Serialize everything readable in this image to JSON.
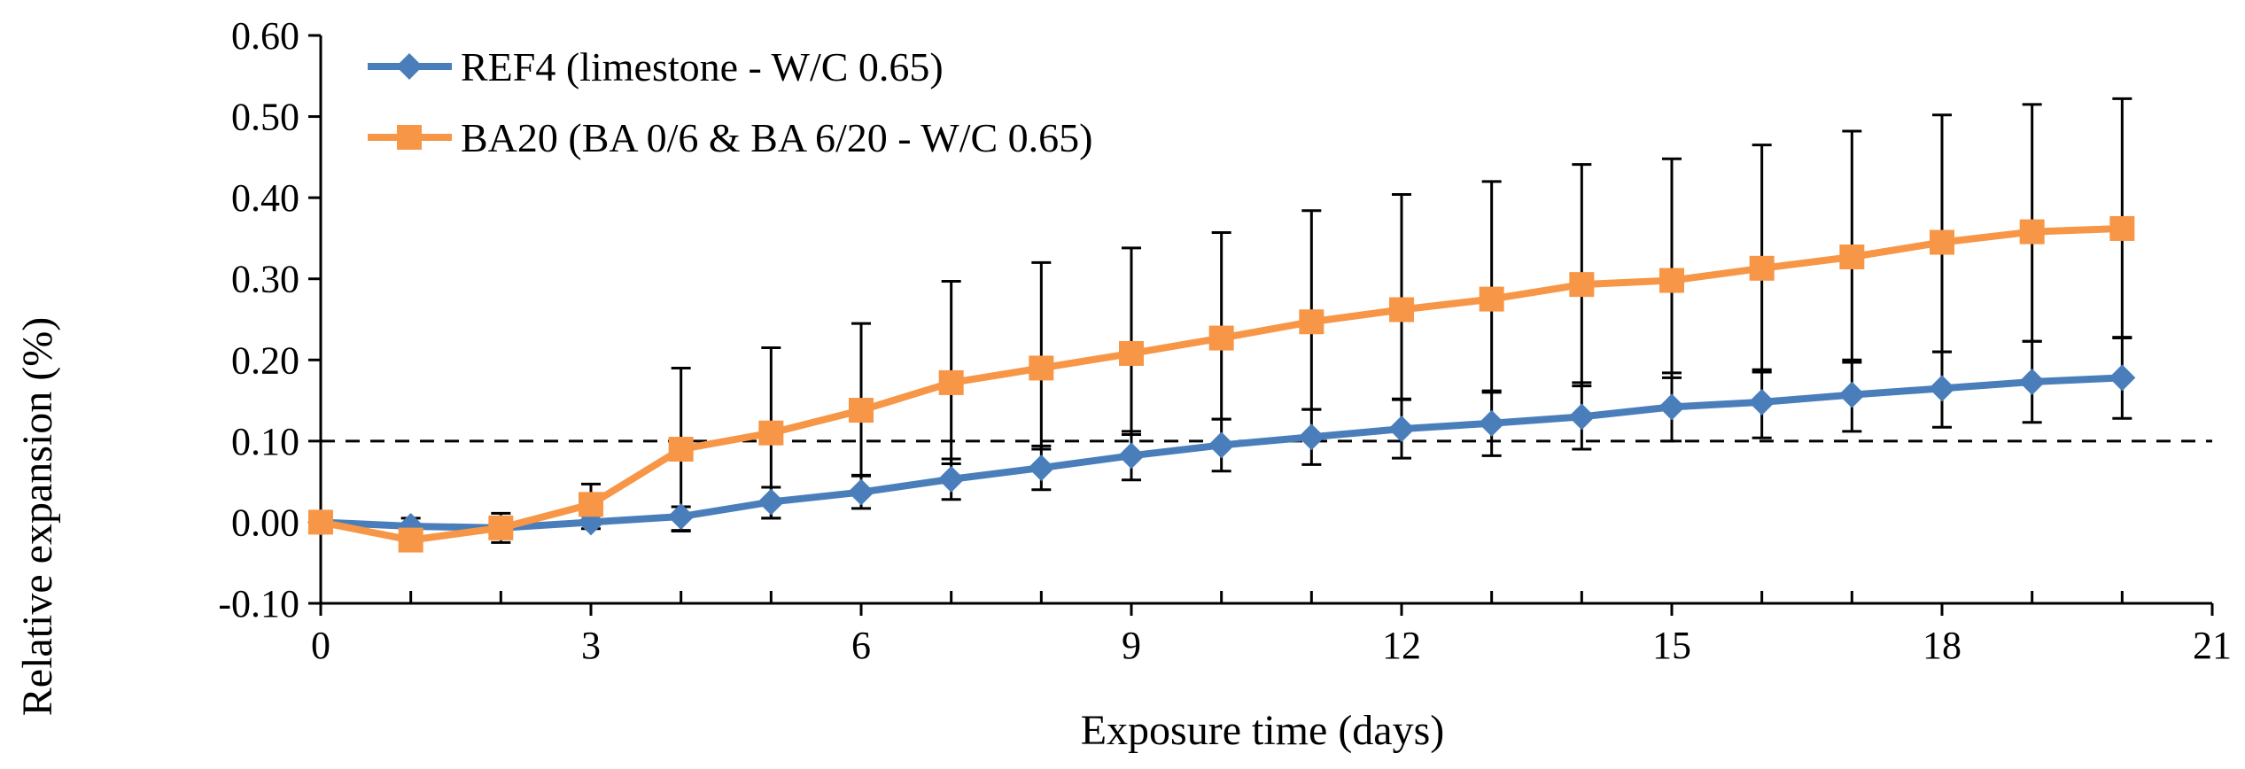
{
  "chart_data": {
    "type": "line",
    "xlabel": "Exposure time (days)",
    "ylabel": "Relative expansion (%)",
    "xlim": [
      0,
      21
    ],
    "ylim": [
      -0.1,
      0.6
    ],
    "xticks": [
      0,
      3,
      6,
      9,
      12,
      15,
      18,
      21
    ],
    "yticks": [
      -0.1,
      0.0,
      0.1,
      0.2,
      0.3,
      0.4,
      0.5,
      0.6
    ],
    "x_tick_labels": [
      "0",
      "3",
      "6",
      "9",
      "12",
      "15",
      "18",
      "21"
    ],
    "y_tick_labels": [
      "-0.10",
      "0.00",
      "0.10",
      "0.20",
      "0.30",
      "0.40",
      "0.50",
      "0.60"
    ],
    "grid": false,
    "legend_position": "top-left",
    "reference_line": {
      "y": 0.1,
      "style": "dashed"
    },
    "x": [
      0,
      1,
      2,
      3,
      4,
      5,
      6,
      7,
      8,
      9,
      10,
      11,
      12,
      13,
      14,
      15,
      16,
      17,
      18,
      19,
      20
    ],
    "series": [
      {
        "name": "REF4 (limestone - W/C 0.65)",
        "color": "#4A7EBB",
        "marker": "diamond",
        "values": [
          0.0,
          -0.005,
          -0.007,
          0.0,
          0.007,
          0.025,
          0.037,
          0.053,
          0.067,
          0.082,
          0.095,
          0.105,
          0.115,
          0.122,
          0.13,
          0.142,
          0.148,
          0.157,
          0.165,
          0.173,
          0.178
        ],
        "error_upper": [
          0.0,
          0.01,
          0.01,
          0.008,
          0.012,
          0.018,
          0.02,
          0.025,
          0.027,
          0.03,
          0.032,
          0.034,
          0.036,
          0.04,
          0.042,
          0.042,
          0.04,
          0.043,
          0.045,
          0.05,
          0.05
        ],
        "error_lower": [
          0.0,
          0.01,
          0.01,
          0.008,
          0.018,
          0.02,
          0.02,
          0.025,
          0.027,
          0.03,
          0.032,
          0.034,
          0.036,
          0.04,
          0.04,
          0.042,
          0.044,
          0.045,
          0.048,
          0.05,
          0.05
        ]
      },
      {
        "name": "BA20 (BA 0/6 & BA 6/20 - W/C 0.65)",
        "color": "#F79646",
        "marker": "square",
        "values": [
          0.0,
          -0.022,
          -0.007,
          0.022,
          0.09,
          0.11,
          0.138,
          0.172,
          0.19,
          0.208,
          0.227,
          0.247,
          0.262,
          0.275,
          0.293,
          0.298,
          0.313,
          0.327,
          0.345,
          0.358,
          0.362
        ],
        "error_upper": [
          0.0,
          0.0,
          0.018,
          0.025,
          0.1,
          0.105,
          0.107,
          0.125,
          0.13,
          0.13,
          0.13,
          0.137,
          0.142,
          0.145,
          0.148,
          0.15,
          0.152,
          0.155,
          0.157,
          0.157,
          0.16
        ],
        "error_lower": [
          0.0,
          0.0,
          0.018,
          0.025,
          0.1,
          0.105,
          0.08,
          0.1,
          0.1,
          0.1,
          0.1,
          0.108,
          0.11,
          0.115,
          0.125,
          0.12,
          0.128,
          0.13,
          0.135,
          0.135,
          0.135
        ]
      }
    ]
  }
}
